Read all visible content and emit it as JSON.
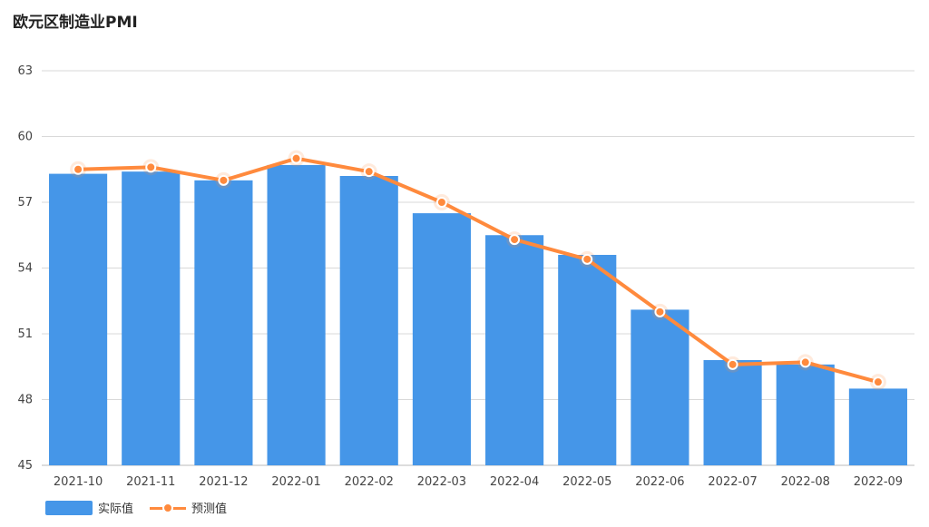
{
  "colors": {
    "bar": "#4596e8",
    "line": "#ff8a3d",
    "grid": "#d9d9d9"
  },
  "chart_data": {
    "type": "bar",
    "title": "欧元区制造业PMI",
    "categories": [
      "2021-10",
      "2021-11",
      "2021-12",
      "2022-01",
      "2022-02",
      "2022-03",
      "2022-04",
      "2022-05",
      "2022-06",
      "2022-07",
      "2022-08",
      "2022-09"
    ],
    "series": [
      {
        "name": "实际值",
        "type": "bar",
        "values": [
          58.3,
          58.4,
          58.0,
          58.7,
          58.2,
          56.5,
          55.5,
          54.6,
          52.1,
          49.8,
          49.6,
          48.5
        ]
      },
      {
        "name": "预测值",
        "type": "line",
        "values": [
          58.5,
          58.6,
          58.0,
          59.0,
          58.4,
          57.0,
          55.3,
          54.4,
          52.0,
          49.6,
          49.7,
          48.8
        ]
      }
    ],
    "yticks": [
      45,
      48,
      51,
      54,
      57,
      60,
      63
    ],
    "ylim": [
      45,
      63
    ],
    "grid": true,
    "legend_position": "bottom-left"
  }
}
